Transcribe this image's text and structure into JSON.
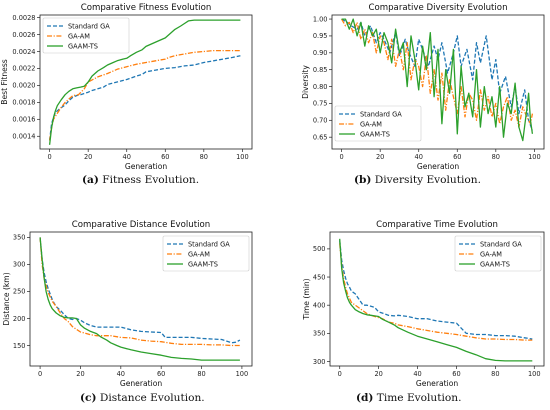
{
  "colors": {
    "standard_ga": "#1f77b4",
    "ga_am": "#ff7f0e",
    "gaam_ts": "#2ca02c"
  },
  "captions": [
    {
      "label": "(a)",
      "text": " Fitness Evolution."
    },
    {
      "label": "(b)",
      "text": " Diversity Evolution."
    },
    {
      "label": "(c)",
      "text": " Distance Evolution."
    },
    {
      "label": "(d)",
      "text": " Time Evolution."
    }
  ],
  "chart_data": [
    {
      "type": "line",
      "title": "Comparative Fitness Evolution",
      "xlabel": "Generation",
      "ylabel": "Best Fitness",
      "xlim": [
        -5,
        105
      ],
      "ylim": [
        0.00125,
        0.00283
      ],
      "xticks": [
        0,
        20,
        40,
        60,
        80,
        100
      ],
      "yticks": [
        0.0014,
        0.0016,
        0.0018,
        0.002,
        0.0022,
        0.0024,
        0.0026,
        0.0028
      ],
      "ytick_labels": [
        "0.0014",
        "0.0016",
        "0.0018",
        "0.0020",
        "0.0022",
        "0.0024",
        "0.0026",
        "0.0028"
      ],
      "legend": "top-left",
      "series": [
        {
          "name": "Standard GA",
          "style": "dashed",
          "x": [
            0,
            1,
            2,
            3,
            5,
            8,
            10,
            12,
            14,
            16,
            20,
            22,
            25,
            28,
            30,
            35,
            40,
            45,
            48,
            50,
            55,
            60,
            65,
            70,
            75,
            80,
            85,
            90,
            95,
            99
          ],
          "y": [
            0.00135,
            0.00155,
            0.00162,
            0.00168,
            0.00172,
            0.00177,
            0.00182,
            0.00186,
            0.00188,
            0.00189,
            0.00192,
            0.00194,
            0.00196,
            0.00198,
            0.00201,
            0.00204,
            0.00207,
            0.00211,
            0.00213,
            0.00216,
            0.00218,
            0.0022,
            0.00221,
            0.00223,
            0.00224,
            0.00227,
            0.00229,
            0.00231,
            0.00233,
            0.00235
          ]
        },
        {
          "name": "GA-AM",
          "style": "dashdot",
          "x": [
            0,
            1,
            2,
            4,
            6,
            8,
            10,
            12,
            15,
            18,
            20,
            25,
            30,
            35,
            40,
            45,
            50,
            55,
            60,
            62,
            65,
            70,
            75,
            80,
            85,
            90,
            95,
            99
          ],
          "y": [
            0.00135,
            0.0015,
            0.0016,
            0.00167,
            0.00174,
            0.0018,
            0.00184,
            0.00188,
            0.00189,
            0.00196,
            0.00204,
            0.0021,
            0.00214,
            0.00219,
            0.00222,
            0.00225,
            0.00227,
            0.00229,
            0.00231,
            0.00233,
            0.00235,
            0.00237,
            0.00239,
            0.0024,
            0.00241,
            0.00241,
            0.00241,
            0.00241
          ]
        },
        {
          "name": "GAAM-TS",
          "style": "solid",
          "x": [
            0,
            1,
            2,
            3,
            4,
            6,
            8,
            10,
            12,
            14,
            16,
            18,
            20,
            22,
            25,
            28,
            30,
            33,
            35,
            38,
            40,
            42,
            45,
            48,
            50,
            55,
            60,
            63,
            65,
            68,
            70,
            72,
            75,
            80,
            85,
            90,
            95,
            99
          ],
          "y": [
            0.0013,
            0.0015,
            0.00162,
            0.0017,
            0.00176,
            0.00183,
            0.00189,
            0.00193,
            0.00196,
            0.00197,
            0.00198,
            0.00199,
            0.00204,
            0.00211,
            0.00217,
            0.00221,
            0.00224,
            0.00227,
            0.00229,
            0.00231,
            0.00232,
            0.00235,
            0.00239,
            0.00242,
            0.00246,
            0.00251,
            0.00256,
            0.00262,
            0.00266,
            0.0027,
            0.00273,
            0.00276,
            0.00277,
            0.00277,
            0.00277,
            0.00277,
            0.00277,
            0.00277
          ]
        }
      ]
    },
    {
      "type": "line",
      "title": "Comparative Diversity Evolution",
      "xlabel": "Generation",
      "ylabel": "Diversity",
      "xlim": [
        -5,
        105
      ],
      "ylim": [
        0.615,
        1.012
      ],
      "xticks": [
        0,
        20,
        40,
        60,
        80,
        100
      ],
      "yticks": [
        0.65,
        0.7,
        0.75,
        0.8,
        0.85,
        0.9,
        0.95,
        1.0
      ],
      "ytick_labels": [
        "0.65",
        "0.70",
        "0.75",
        "0.80",
        "0.85",
        "0.90",
        "0.95",
        "1.00"
      ],
      "legend": "bottom-left",
      "series": [
        {
          "name": "Standard GA",
          "style": "dashed",
          "x": [
            0,
            3,
            5,
            8,
            10,
            12,
            15,
            18,
            20,
            22,
            25,
            28,
            30,
            33,
            35,
            38,
            40,
            42,
            45,
            48,
            50,
            52,
            55,
            58,
            60,
            62,
            65,
            68,
            70,
            72,
            75,
            78,
            80,
            82,
            85,
            88,
            90,
            92,
            95,
            97,
            99
          ],
          "y": [
            1.0,
            0.99,
            0.98,
            0.97,
            0.99,
            0.95,
            0.98,
            0.93,
            0.96,
            0.94,
            0.9,
            0.96,
            0.89,
            0.94,
            0.9,
            0.86,
            0.94,
            0.91,
            0.86,
            0.92,
            0.88,
            0.93,
            0.84,
            0.9,
            0.95,
            0.86,
            0.91,
            0.82,
            0.93,
            0.87,
            0.95,
            0.82,
            0.88,
            0.78,
            0.83,
            0.74,
            0.8,
            0.72,
            0.79,
            0.7,
            0.67
          ]
        },
        {
          "name": "GA-AM",
          "style": "dashdot",
          "x": [
            0,
            2,
            4,
            6,
            8,
            10,
            12,
            14,
            16,
            18,
            20,
            22,
            24,
            26,
            28,
            30,
            32,
            34,
            36,
            38,
            40,
            42,
            44,
            46,
            48,
            50,
            52,
            54,
            56,
            58,
            60,
            62,
            64,
            66,
            68,
            70,
            72,
            74,
            76,
            78,
            80,
            82,
            84,
            86,
            88,
            90,
            92,
            94,
            96,
            98,
            99
          ],
          "y": [
            1.0,
            0.98,
            0.99,
            0.96,
            0.99,
            0.94,
            0.97,
            0.93,
            0.96,
            0.9,
            0.95,
            0.93,
            0.88,
            0.94,
            0.86,
            0.91,
            0.85,
            0.93,
            0.82,
            0.88,
            0.86,
            0.8,
            0.89,
            0.78,
            0.85,
            0.76,
            0.84,
            0.73,
            0.82,
            0.77,
            0.72,
            0.8,
            0.71,
            0.78,
            0.76,
            0.7,
            0.79,
            0.73,
            0.77,
            0.71,
            0.75,
            0.69,
            0.74,
            0.77,
            0.7,
            0.73,
            0.68,
            0.74,
            0.71,
            0.69,
            0.72
          ]
        },
        {
          "name": "GAAM-TS",
          "style": "solid",
          "x": [
            0,
            2,
            4,
            6,
            8,
            10,
            12,
            14,
            16,
            18,
            20,
            22,
            24,
            26,
            28,
            30,
            32,
            34,
            36,
            38,
            40,
            42,
            44,
            46,
            48,
            50,
            52,
            54,
            56,
            58,
            60,
            62,
            64,
            66,
            68,
            70,
            72,
            74,
            76,
            78,
            80,
            82,
            84,
            86,
            88,
            90,
            92,
            94,
            96,
            97,
            98,
            99
          ],
          "y": [
            1.0,
            1.0,
            0.97,
            1.0,
            0.95,
            0.99,
            0.92,
            0.98,
            0.95,
            0.97,
            0.9,
            0.96,
            0.93,
            0.87,
            0.97,
            0.9,
            0.93,
            0.8,
            0.95,
            0.88,
            0.79,
            0.92,
            0.85,
            0.96,
            0.77,
            0.91,
            0.69,
            0.85,
            0.78,
            0.91,
            0.66,
            0.86,
            0.74,
            0.78,
            0.71,
            0.85,
            0.68,
            0.8,
            0.72,
            0.77,
            0.68,
            0.8,
            0.65,
            0.75,
            0.72,
            0.81,
            0.68,
            0.64,
            0.73,
            0.78,
            0.7,
            0.66
          ]
        }
      ]
    },
    {
      "type": "line",
      "title": "Comparative Distance Evolution",
      "xlabel": "Generation",
      "ylabel": "Distance (km)",
      "xlim": [
        -5,
        105
      ],
      "ylim": [
        112,
        360
      ],
      "xticks": [
        0,
        20,
        40,
        60,
        80,
        100
      ],
      "yticks": [
        150,
        200,
        250,
        300,
        350
      ],
      "ytick_labels": [
        "150",
        "200",
        "250",
        "300",
        "350"
      ],
      "legend": "top-right",
      "series": [
        {
          "name": "Standard GA",
          "style": "dashed",
          "x": [
            0,
            1,
            2,
            3,
            4,
            5,
            6,
            7,
            8,
            10,
            12,
            14,
            16,
            18,
            20,
            22,
            25,
            28,
            30,
            35,
            40,
            45,
            50,
            55,
            60,
            62,
            65,
            70,
            75,
            80,
            85,
            90,
            95,
            97,
            99
          ],
          "y": [
            350,
            310,
            285,
            268,
            255,
            245,
            235,
            228,
            222,
            215,
            207,
            200,
            198,
            200,
            197,
            192,
            187,
            184,
            184,
            184,
            184,
            179,
            176,
            175,
            174,
            165,
            165,
            165,
            165,
            163,
            162,
            161,
            155,
            156,
            160
          ]
        },
        {
          "name": "GA-AM",
          "style": "dashdot",
          "x": [
            0,
            1,
            2,
            3,
            4,
            5,
            6,
            8,
            10,
            12,
            14,
            16,
            18,
            20,
            22,
            25,
            28,
            30,
            35,
            40,
            45,
            50,
            55,
            60,
            65,
            70,
            75,
            80,
            85,
            90,
            95,
            99
          ],
          "y": [
            350,
            300,
            275,
            260,
            248,
            240,
            232,
            222,
            210,
            200,
            194,
            185,
            180,
            175,
            173,
            170,
            168,
            168,
            168,
            165,
            164,
            160,
            158,
            157,
            154,
            152,
            152,
            152,
            151,
            151,
            150,
            150
          ]
        },
        {
          "name": "GAAM-TS",
          "style": "solid",
          "x": [
            0,
            1,
            2,
            3,
            4,
            5,
            6,
            8,
            10,
            12,
            14,
            16,
            18,
            20,
            22,
            25,
            28,
            30,
            33,
            35,
            38,
            40,
            45,
            50,
            55,
            60,
            65,
            70,
            75,
            80,
            85,
            90,
            95,
            99
          ],
          "y": [
            350,
            310,
            275,
            250,
            235,
            225,
            218,
            210,
            205,
            202,
            201,
            201,
            200,
            188,
            182,
            176,
            172,
            166,
            160,
            155,
            150,
            147,
            142,
            138,
            135,
            132,
            128,
            126,
            125,
            123,
            123,
            123,
            123,
            123
          ]
        }
      ]
    },
    {
      "type": "line",
      "title": "Comparative Time Evolution",
      "xlabel": "Generation",
      "ylabel": "Time (min)",
      "xlim": [
        -5,
        105
      ],
      "ylim": [
        292,
        530
      ],
      "xticks": [
        0,
        20,
        40,
        60,
        80,
        100
      ],
      "yticks": [
        300,
        350,
        400,
        450,
        500
      ],
      "ytick_labels": [
        "300",
        "350",
        "400",
        "450",
        "500"
      ],
      "legend": "top-right",
      "series": [
        {
          "name": "Standard GA",
          "style": "dashed",
          "x": [
            0,
            1,
            2,
            3,
            4,
            5,
            6,
            8,
            10,
            12,
            14,
            16,
            18,
            20,
            22,
            25,
            28,
            30,
            35,
            40,
            45,
            50,
            55,
            60,
            65,
            70,
            75,
            80,
            85,
            90,
            95,
            99
          ],
          "y": [
            515,
            480,
            462,
            448,
            438,
            432,
            425,
            420,
            410,
            400,
            400,
            398,
            396,
            388,
            386,
            382,
            381,
            382,
            380,
            376,
            376,
            372,
            370,
            368,
            350,
            348,
            348,
            346,
            346,
            345,
            342,
            340
          ]
        },
        {
          "name": "GA-AM",
          "style": "dashdot",
          "x": [
            0,
            1,
            2,
            3,
            4,
            5,
            6,
            8,
            10,
            12,
            14,
            16,
            18,
            20,
            22,
            25,
            28,
            30,
            35,
            40,
            45,
            50,
            55,
            60,
            65,
            70,
            75,
            80,
            85,
            90,
            95,
            99
          ],
          "y": [
            510,
            470,
            448,
            432,
            420,
            412,
            405,
            400,
            395,
            390,
            385,
            382,
            380,
            378,
            376,
            370,
            368,
            365,
            362,
            358,
            355,
            352,
            350,
            348,
            345,
            342,
            340,
            340,
            339,
            339,
            338,
            338
          ]
        },
        {
          "name": "GAAM-TS",
          "style": "solid",
          "x": [
            0,
            1,
            2,
            3,
            4,
            5,
            6,
            8,
            10,
            12,
            14,
            16,
            18,
            20,
            22,
            25,
            28,
            30,
            35,
            40,
            45,
            50,
            55,
            60,
            65,
            70,
            75,
            80,
            85,
            90,
            95,
            99
          ],
          "y": [
            518,
            465,
            440,
            425,
            413,
            405,
            400,
            392,
            388,
            385,
            383,
            382,
            381,
            380,
            375,
            370,
            365,
            360,
            352,
            345,
            340,
            335,
            330,
            325,
            318,
            312,
            305,
            302,
            301,
            301,
            301,
            301
          ]
        }
      ]
    }
  ]
}
